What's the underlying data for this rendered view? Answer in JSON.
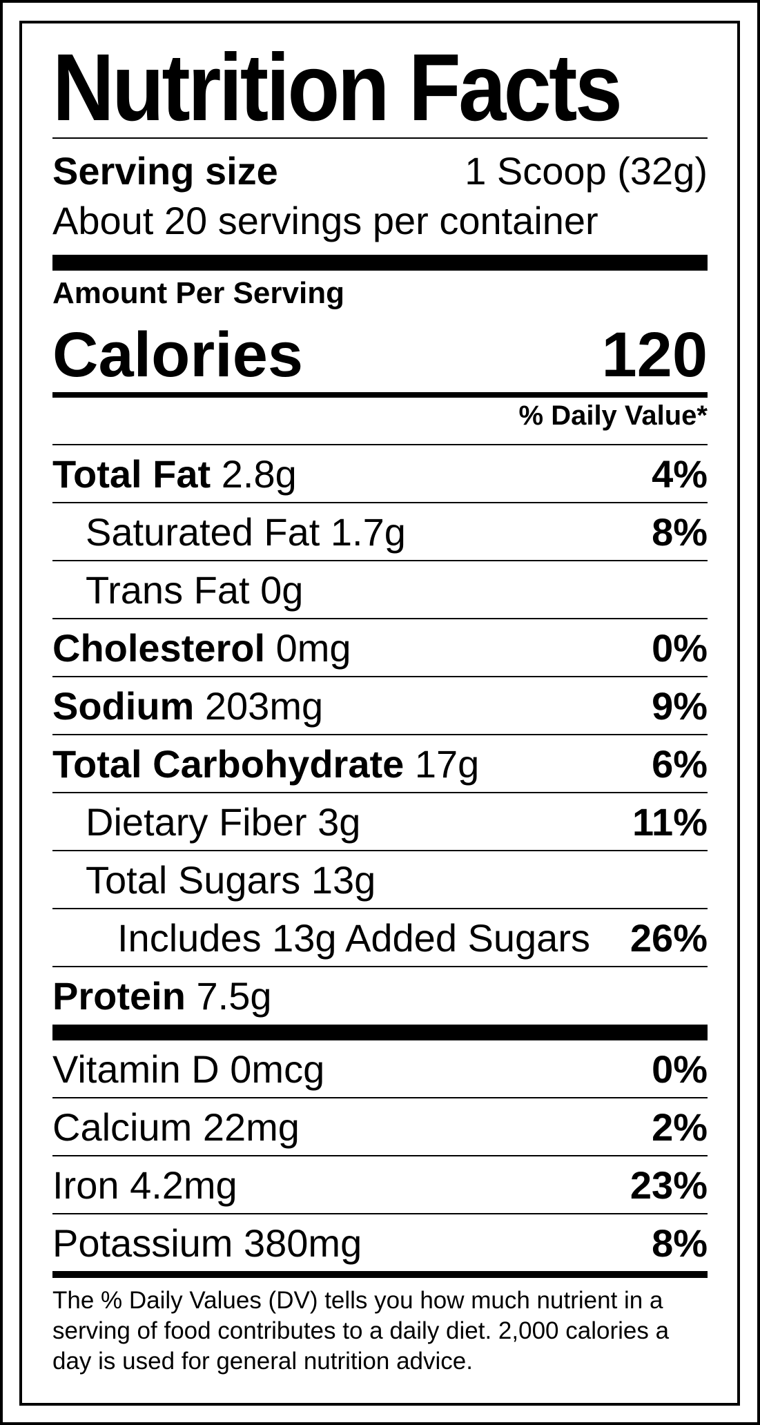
{
  "title": "Nutrition Facts",
  "serving": {
    "label": "Serving size",
    "value": "1 Scoop (32g)",
    "per_container": "About 20 servings per container"
  },
  "amount_per_serving": "Amount Per Serving",
  "calories": {
    "label": "Calories",
    "value": "120"
  },
  "daily_value_header": "% Daily Value*",
  "nutrients": [
    {
      "name": "Total Fat",
      "amount": "2.8g",
      "dv": "4%"
    },
    {
      "name": "Saturated Fat",
      "amount": "1.7g",
      "dv": "8%"
    },
    {
      "name": "Trans Fat",
      "amount": "0g",
      "dv": ""
    },
    {
      "name": "Cholesterol",
      "amount": "0mg",
      "dv": "0%"
    },
    {
      "name": "Sodium",
      "amount": "203mg",
      "dv": "9%"
    },
    {
      "name": "Total Carbohydrate",
      "amount": "17g",
      "dv": "6%"
    },
    {
      "name": "Dietary Fiber",
      "amount": "3g",
      "dv": "11%"
    },
    {
      "name": "Total Sugars",
      "amount": "13g",
      "dv": ""
    },
    {
      "name": "Includes 13g Added Sugars",
      "amount": "",
      "dv": "26%"
    },
    {
      "name": "Protein",
      "amount": "7.5g",
      "dv": ""
    }
  ],
  "vitamins": [
    {
      "name": "Vitamin D",
      "amount": "0mcg",
      "dv": "0%"
    },
    {
      "name": "Calcium",
      "amount": "22mg",
      "dv": "2%"
    },
    {
      "name": "Iron",
      "amount": "4.2mg",
      "dv": "23%"
    },
    {
      "name": "Potassium",
      "amount": "380mg",
      "dv": "8%"
    }
  ],
  "footnote": "The % Daily Values (DV) tells you how much nutrient in a serving of food contributes to a daily diet. 2,000 calories a day is used for general nutrition advice."
}
